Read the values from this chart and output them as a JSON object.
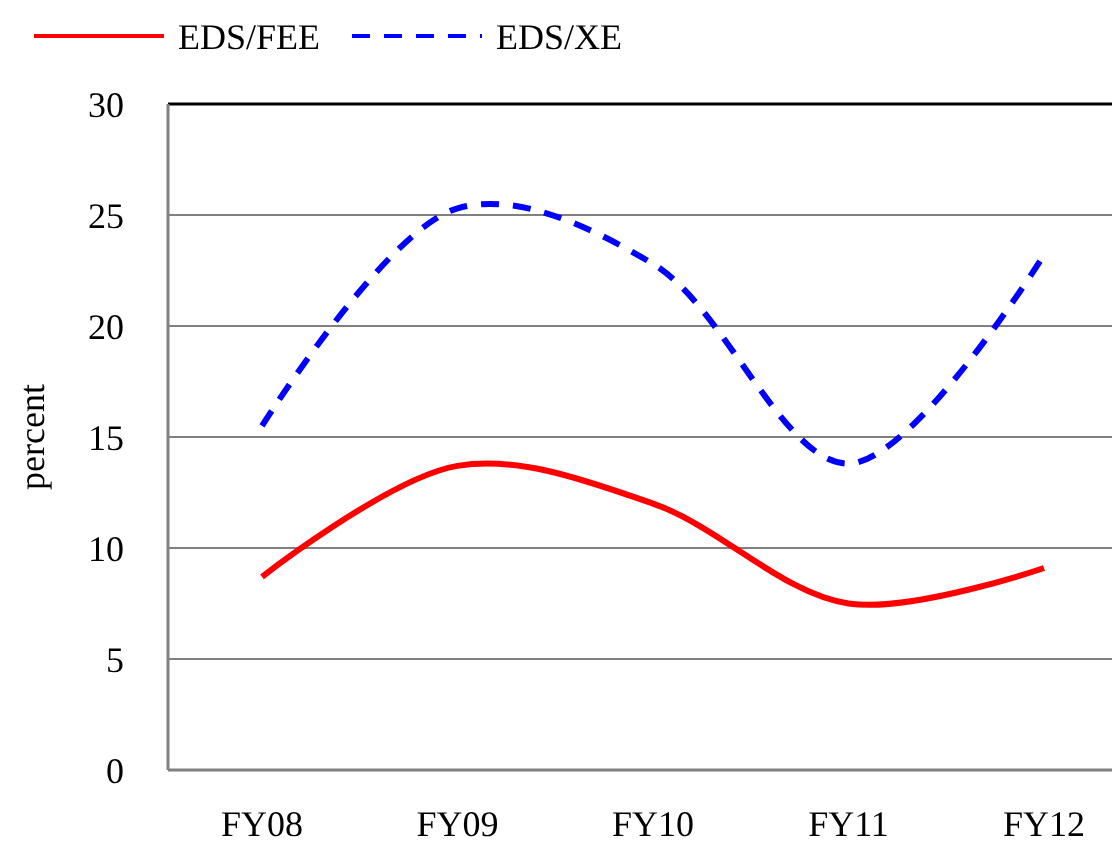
{
  "chart_data": {
    "type": "line",
    "ylabel": "percent",
    "categories": [
      "FY08",
      "FY09",
      "FY10",
      "FY11",
      "FY12"
    ],
    "series": [
      {
        "name": "EDS/FEE",
        "color": "#ff0000",
        "line_style": "solid",
        "values": [
          8.7,
          13.7,
          12.0,
          7.5,
          9.1
        ]
      },
      {
        "name": "EDS/XE",
        "color": "#0000ff",
        "line_style": "dashed",
        "values": [
          15.5,
          25.3,
          22.8,
          13.8,
          23.2
        ]
      }
    ],
    "ylim": [
      0,
      30
    ],
    "yticks": [
      0,
      5,
      10,
      15,
      20,
      25,
      30
    ],
    "grid": "y",
    "legend": "top left"
  }
}
